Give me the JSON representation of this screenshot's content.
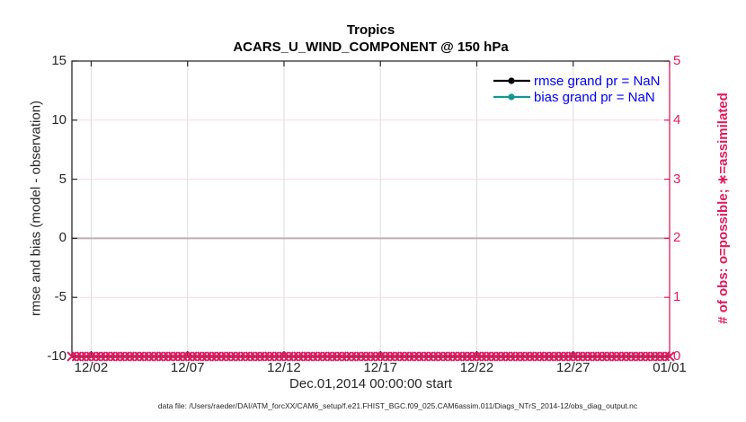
{
  "figure": {
    "title": "Tropics",
    "subtitle": "ACARS_U_WIND_COMPONENT @ 150 hPa",
    "xlabel": "Dec.01,2014 00:00:00 start",
    "footer": "data file: /Users/raeder/DAI/ATM_forcXX/CAM6_setup/f.e21.FHIST_BGC.f09_025.CAM6assim.011/Diags_NTrS_2014-12/obs_diag_output.nc"
  },
  "legend": {
    "text_color": "#0000ff",
    "items": [
      {
        "label": "rmse grand pr = NaN",
        "color": "#000000",
        "marker": "filled-circle"
      },
      {
        "label": "bias grand pr = NaN",
        "color": "#149690",
        "marker": "filled-circle"
      }
    ]
  },
  "chart_data": {
    "type": "line",
    "title": "Tropics",
    "subtitle": "ACARS_U_WIND_COMPONENT @ 150 hPa",
    "xlabel": "Dec.01,2014 00:00:00 start",
    "x_axis": {
      "tick_labels": [
        "12/02",
        "12/07",
        "12/12",
        "12/17",
        "12/22",
        "12/27",
        "01/01"
      ],
      "tick_days": [
        1,
        6,
        11,
        16,
        21,
        26,
        31
      ],
      "range_days": [
        0,
        31
      ],
      "start": "Dec.01,2014 00:00:00"
    },
    "left_axis": {
      "label": "rmse and bias (model - observation)",
      "ticks": [
        15,
        10,
        5,
        0,
        -5,
        -10
      ],
      "lim": [
        -10,
        15
      ],
      "color": "#262626"
    },
    "right_axis": {
      "label": "# of obs: o=possible; ∗=assimilated",
      "ticks": [
        5,
        4,
        3,
        2,
        1,
        0
      ],
      "lim": [
        0,
        5
      ],
      "color": "#df1b60"
    },
    "series": [
      {
        "name": "rmse grand pr = NaN",
        "type": "line",
        "color": "#000000",
        "values": "NaN",
        "visible_points": 0
      },
      {
        "name": "bias grand pr = NaN",
        "type": "line",
        "color": "#149690",
        "values": "NaN",
        "visible_points": 0
      },
      {
        "name": "assimilated obs count",
        "type": "x-markers",
        "axis": "right",
        "color": "#df1b60",
        "constant_value": 0,
        "marker_count": 125
      }
    ],
    "zero_line": {
      "value": 0,
      "axis": "left",
      "color": "#bdaeb0"
    },
    "grid": {
      "on": true,
      "vertical_color": "#dcdcdc",
      "horizontal_color": "#f6d9e2"
    },
    "legend_position": "top-right-inside"
  }
}
